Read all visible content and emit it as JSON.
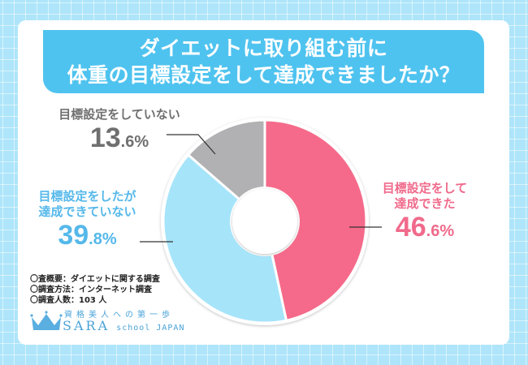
{
  "title": {
    "line1": "ダイエットに取り組む前に",
    "line2": "体重の目標設定をして達成できましたか？"
  },
  "labels": {
    "not_set": {
      "text": "目標設定をしていない",
      "value_int": "13",
      "value_dec": ".6%"
    },
    "set_not_achieved": {
      "line1": "目標設定をしたが",
      "line2": "達成できていない",
      "value_int": "39",
      "value_dec": ".8%"
    },
    "achieved": {
      "line1": "目標設定をして",
      "line2": "達成できた",
      "value_int": "46",
      "value_dec": ".6%"
    }
  },
  "notes": [
    "〇査概要：ダイエットに関する調査",
    "〇調査方法：インターネット調査",
    "〇調査人数：103 人"
  ],
  "logo": {
    "tagline": "資格美人への第一歩",
    "brand": "SARA",
    "suffix": "school JAPAN"
  },
  "colors": {
    "achieved": "#f56a8a",
    "set_not_achieved": "#a6e4fa",
    "not_set": "#b1b1b3",
    "banner": "#4fc3ef"
  },
  "chart_data": {
    "type": "pie",
    "title": "ダイエットに取り組む前に体重の目標設定をして達成できましたか？",
    "categories": [
      "目標設定をして達成できた",
      "目標設定をしたが達成できていない",
      "目標設定をしていない"
    ],
    "values": [
      46.6,
      39.8,
      13.6
    ],
    "unit": "%",
    "donut": true,
    "start_angle": "12 o'clock, clockwise",
    "sample_size": 103
  }
}
